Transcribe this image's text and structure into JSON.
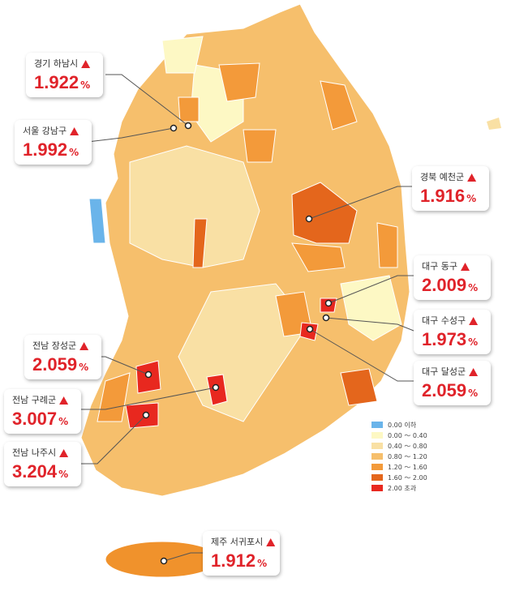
{
  "callouts": [
    {
      "region": "경기 하남시",
      "value": "1.922",
      "unit": "%"
    },
    {
      "region": "서울 강남구",
      "value": "1.992",
      "unit": "%"
    },
    {
      "region": "경북 예천군",
      "value": "1.916",
      "unit": "%"
    },
    {
      "region": "대구 동구",
      "value": "2.009",
      "unit": "%"
    },
    {
      "region": "대구 수성구",
      "value": "1.973",
      "unit": "%"
    },
    {
      "region": "대구 달성군",
      "value": "2.059",
      "unit": "%"
    },
    {
      "region": "전남 장성군",
      "value": "2.059",
      "unit": "%"
    },
    {
      "region": "전남 구례군",
      "value": "3.007",
      "unit": "%"
    },
    {
      "region": "전남 나주시",
      "value": "3.204",
      "unit": "%"
    },
    {
      "region": "제주 서귀포시",
      "value": "1.912",
      "unit": "%"
    }
  ],
  "legend": [
    {
      "label": "0.00 이하",
      "color": "#6ab4ea"
    },
    {
      "label": "0.00 ～ 0.40",
      "color": "#fdf8c4"
    },
    {
      "label": "0.40 ～ 0.80",
      "color": "#f9e0a4"
    },
    {
      "label": "0.80 ～ 1.20",
      "color": "#f6bf6c"
    },
    {
      "label": "1.20 ～ 1.60",
      "color": "#f39a3a"
    },
    {
      "label": "1.60 ～ 2.00",
      "color": "#e4661c"
    },
    {
      "label": "2.00 초과",
      "color": "#e8281f"
    }
  ]
}
